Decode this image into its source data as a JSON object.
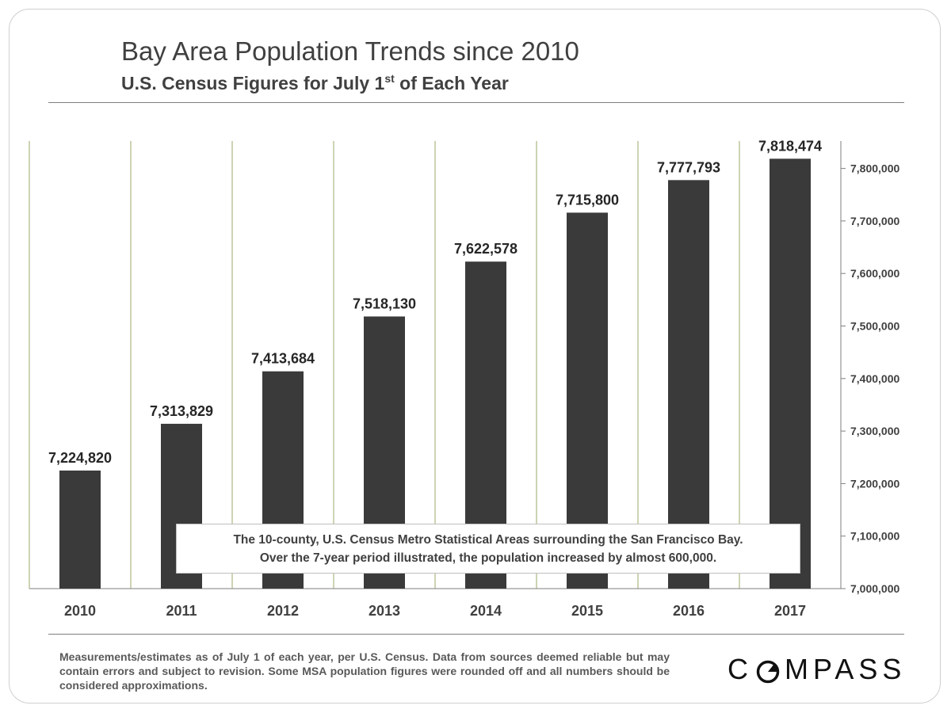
{
  "header": {
    "title": "Bay Area Population Trends since 2010",
    "subtitle_main": "U.S. Census Figures for July 1",
    "subtitle_sup": "st",
    "subtitle_end": " of Each Year"
  },
  "chart_data": {
    "type": "bar",
    "categories": [
      "2010",
      "2011",
      "2012",
      "2013",
      "2014",
      "2015",
      "2016",
      "2017"
    ],
    "values": [
      7224820,
      7313829,
      7413684,
      7518130,
      7622578,
      7715800,
      7777793,
      7818474
    ],
    "value_labels": [
      "7,224,820",
      "7,313,829",
      "7,413,684",
      "7,518,130",
      "7,622,578",
      "7,715,800",
      "7,777,793",
      "7,818,474"
    ],
    "ylim": [
      7000000,
      7850000
    ],
    "yticks": [
      7000000,
      7100000,
      7200000,
      7300000,
      7400000,
      7500000,
      7600000,
      7700000,
      7800000
    ],
    "ytick_labels": [
      "7,000,000",
      "7,100,000",
      "7,200,000",
      "7,300,000",
      "7,400,000",
      "7,500,000",
      "7,600,000",
      "7,700,000",
      "7,800,000"
    ],
    "y_axis_side": "right",
    "grid": "vertical category separators",
    "bar_color": "#3a3a3a",
    "separator_color": "#9aaa6a"
  },
  "annotation": {
    "line1": "The 10-county, U.S. Census Metro Statistical Areas surrounding the San Francisco Bay.",
    "line2": "Over the 7-year period illustrated, the population increased by almost 600,000."
  },
  "footer": {
    "note": "Measurements/estimates as of July 1 of each year, per U.S. Census. Data from sources deemed reliable but may contain errors and subject to revision. Some MSA population figures were rounded off and all numbers should be considered approximations.",
    "logo_before": "C",
    "logo_after": "MPASS"
  }
}
